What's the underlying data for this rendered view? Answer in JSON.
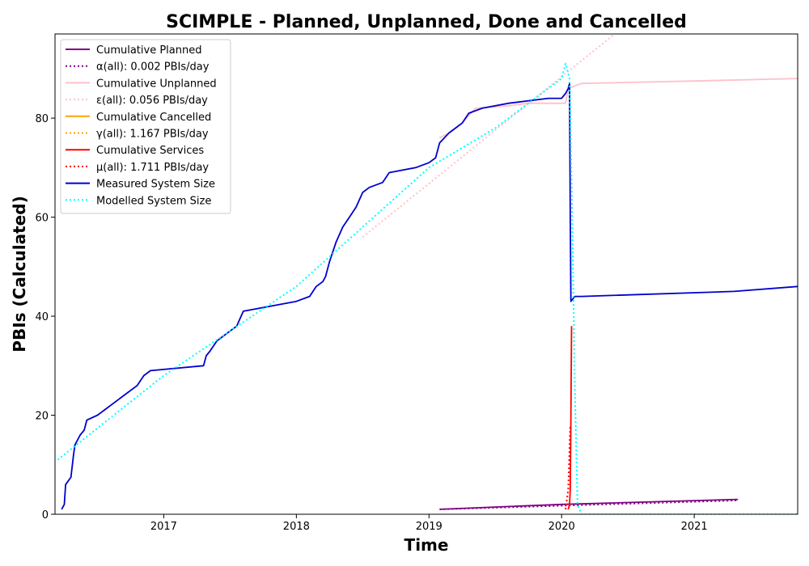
{
  "chart_data": {
    "type": "line",
    "title": "SCIMPLE - Planned, Unplanned, Done  and Cancelled",
    "xlabel": "Time",
    "ylabel": "PBIs (Calculated)",
    "xlim": [
      2016.18,
      2021.78
    ],
    "ylim": [
      0,
      97
    ],
    "xticks": [
      2017,
      2018,
      2019,
      2020,
      2021
    ],
    "xtick_labels": [
      "2017",
      "2018",
      "2019",
      "2020",
      "2021"
    ],
    "yticks": [
      0,
      20,
      40,
      60,
      80
    ],
    "yticks_labels": [
      "0",
      "20",
      "40",
      "60",
      "80"
    ],
    "grid": false,
    "legend_position": "upper-left",
    "series": [
      {
        "name": "Cumulative Planned",
        "color": "#800080",
        "style": "solid",
        "x": [
          2019.08,
          2020.0,
          2021.33
        ],
        "y": [
          1,
          2,
          3
        ]
      },
      {
        "name": "α(all): 0.002 PBIs/day",
        "color": "#800080",
        "style": "dotted",
        "x": [
          2019.08,
          2021.33
        ],
        "y": [
          1,
          2.8
        ]
      },
      {
        "name": "Cumulative Unplanned",
        "color": "#ffc0cb",
        "style": "solid",
        "x": [
          2019.08,
          2019.15,
          2019.25,
          2019.35,
          2019.6,
          2019.75,
          2019.9,
          2020.03,
          2020.05,
          2020.15,
          2021.0,
          2021.78
        ],
        "y": [
          76,
          77,
          79,
          82,
          82.5,
          83,
          83,
          83,
          86,
          87,
          87.5,
          88
        ]
      },
      {
        "name": "ε(all): 0.056 PBIs/day",
        "color": "#ffc0cb",
        "style": "dotted",
        "x": [
          2018.5,
          2020.4
        ],
        "y": [
          56,
          97
        ]
      },
      {
        "name": "Cumulative Cancelled",
        "color": "#ffa500",
        "style": "solid",
        "x": [],
        "y": []
      },
      {
        "name": "γ(all): 1.167 PBIs/day",
        "color": "#ffa500",
        "style": "dotted",
        "x": [],
        "y": []
      },
      {
        "name": "Cumulative Services",
        "color": "#ff0000",
        "style": "solid",
        "x": [
          2020.05,
          2020.06,
          2020.065,
          2020.07,
          2020.075
        ],
        "y": [
          1,
          2,
          5,
          20,
          38
        ]
      },
      {
        "name": "μ(all): 1.711 PBIs/day",
        "color": "#ff0000",
        "style": "dotted",
        "x": [
          2020.03,
          2020.05,
          2020.065
        ],
        "y": [
          1,
          5,
          18
        ]
      },
      {
        "name": "Measured System Size",
        "color": "#0000cd",
        "style": "solid",
        "x": [
          2016.23,
          2016.25,
          2016.26,
          2016.3,
          2016.32,
          2016.33,
          2016.35,
          2016.37,
          2016.4,
          2016.42,
          2016.5,
          2016.55,
          2016.6,
          2016.65,
          2016.7,
          2016.8,
          2016.85,
          2016.9,
          2017.3,
          2017.32,
          2017.35,
          2017.4,
          2017.45,
          2017.55,
          2017.6,
          2018.0,
          2018.1,
          2018.15,
          2018.2,
          2018.22,
          2018.25,
          2018.3,
          2018.35,
          2018.4,
          2018.45,
          2018.5,
          2018.55,
          2018.65,
          2018.7,
          2018.9,
          2019.0,
          2019.05,
          2019.08,
          2019.15,
          2019.2,
          2019.25,
          2019.3,
          2019.4,
          2019.6,
          2019.9,
          2020.0,
          2020.03,
          2020.05,
          2020.06,
          2020.065,
          2020.07,
          2020.1,
          2020.15,
          2021.3,
          2021.78
        ],
        "y": [
          1,
          2,
          6,
          7.5,
          12,
          14,
          15,
          16,
          17,
          19,
          20,
          21,
          22,
          23,
          24,
          26,
          28,
          29,
          30,
          32,
          33,
          35,
          36,
          38,
          41,
          43,
          44,
          46,
          47,
          48,
          51,
          55,
          58,
          60,
          62,
          65,
          66,
          67,
          69,
          70,
          71,
          72,
          75,
          77,
          78,
          79,
          81,
          82,
          83,
          84,
          84,
          85,
          86,
          87,
          60,
          43,
          44,
          44,
          45,
          46
        ]
      },
      {
        "name": "Modelled System Size",
        "color": "#00ffff",
        "style": "dotted",
        "x": [
          2016.2,
          2017.0,
          2018.0,
          2019.0,
          2019.5,
          2020.0,
          2020.03,
          2020.06,
          2020.08,
          2020.1,
          2020.12,
          2020.15,
          2021.78
        ],
        "y": [
          11,
          28,
          46,
          70,
          78,
          88,
          91,
          88,
          60,
          25,
          2,
          0,
          0
        ]
      }
    ]
  }
}
